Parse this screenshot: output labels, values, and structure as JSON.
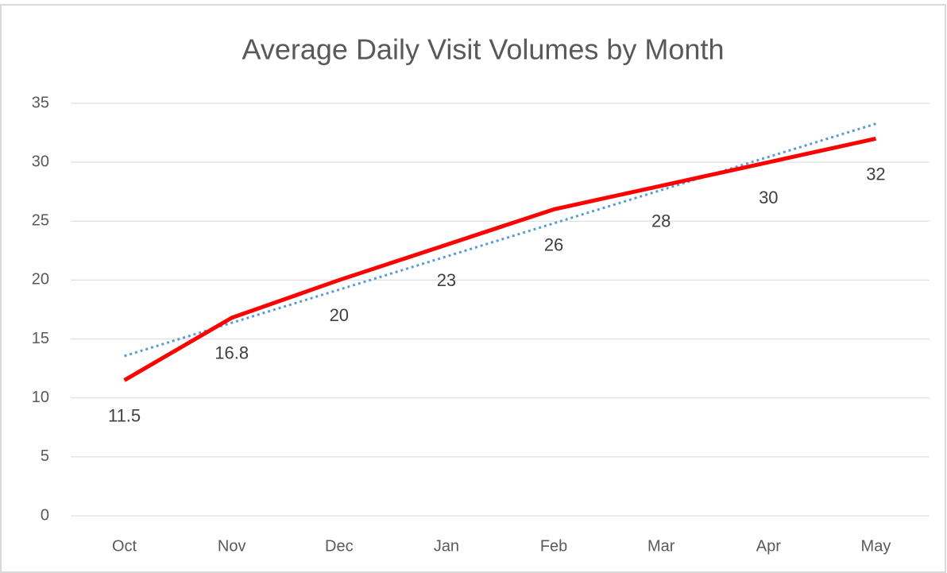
{
  "chart_data": {
    "type": "line",
    "title": "Average Daily Visit Volumes by Month",
    "categories": [
      "Oct",
      "Nov",
      "Dec",
      "Jan",
      "Feb",
      "Mar",
      "Apr",
      "May"
    ],
    "values": [
      11.5,
      16.8,
      20,
      23,
      26,
      28,
      30,
      32
    ],
    "color": "#ff0000",
    "ylim": [
      0,
      35
    ],
    "yticks": [
      0,
      5,
      10,
      15,
      20,
      25,
      30,
      35
    ],
    "grid": true,
    "data_labels": true,
    "trendline": {
      "type": "linear",
      "color": "#5b9bd5"
    }
  }
}
